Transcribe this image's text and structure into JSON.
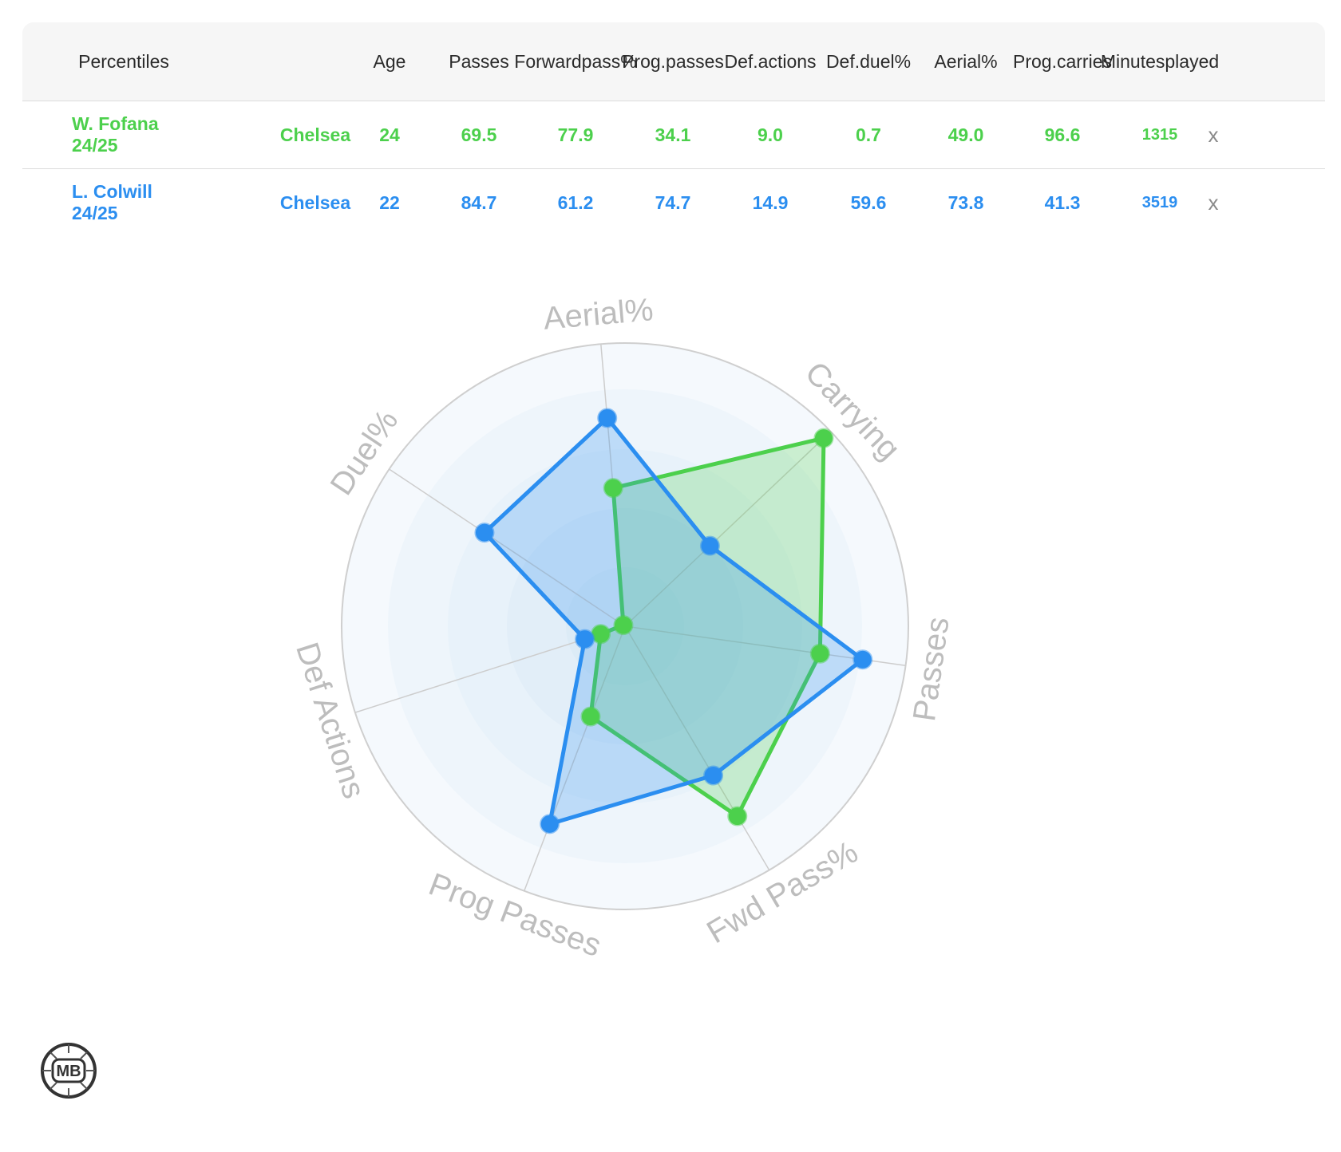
{
  "table": {
    "headers": [
      {
        "key": "percentiles",
        "lines": [
          "Percentiles"
        ]
      },
      {
        "key": "age",
        "lines": [
          "Age"
        ]
      },
      {
        "key": "passes",
        "lines": [
          "Passes"
        ]
      },
      {
        "key": "forward_pass",
        "lines": [
          "Forward",
          "pass%"
        ]
      },
      {
        "key": "prog_passes",
        "lines": [
          "Prog.",
          "passes"
        ]
      },
      {
        "key": "def_actions",
        "lines": [
          "Def.",
          "actions"
        ]
      },
      {
        "key": "def_duel",
        "lines": [
          "Def.",
          "duel%"
        ]
      },
      {
        "key": "aerial",
        "lines": [
          "Aerial%"
        ]
      },
      {
        "key": "prog_carries",
        "lines": [
          "Prog.",
          "carries"
        ]
      },
      {
        "key": "minutes",
        "lines": [
          "Minutes",
          "played"
        ]
      }
    ],
    "rows": [
      {
        "player": "W. Fofana 24/25",
        "team": "Chelsea",
        "age": "24",
        "passes": "69.5",
        "forward_pass": "77.9",
        "prog_passes": "34.1",
        "def_actions": "9.0",
        "def_duel": "0.7",
        "aerial": "49.0",
        "prog_carries": "96.6",
        "minutes": "1315",
        "remove": "x",
        "color": "#4cd04c"
      },
      {
        "player": "L. Colwill 24/25",
        "team": "Chelsea",
        "age": "22",
        "passes": "84.7",
        "forward_pass": "61.2",
        "prog_passes": "74.7",
        "def_actions": "14.9",
        "def_duel": "59.6",
        "aerial": "73.8",
        "prog_carries": "41.3",
        "minutes": "3519",
        "remove": "x",
        "color": "#2b8ef0"
      }
    ]
  },
  "chart_data": {
    "type": "radar",
    "axes": [
      "Aerial%",
      "Carrying",
      "Passes",
      "Fwd Pass%",
      "Prog Passes",
      "Def Actions",
      "Duel%"
    ],
    "range": [
      0,
      100
    ],
    "series": [
      {
        "name": "W. Fofana 24/25",
        "color": "#4cd04c",
        "values": [
          49.0,
          96.6,
          69.5,
          77.9,
          34.1,
          9.0,
          0.7
        ]
      },
      {
        "name": "L. Colwill 24/25",
        "color": "#2b8ef0",
        "values": [
          73.8,
          41.3,
          84.7,
          61.2,
          74.7,
          14.9,
          59.6
        ]
      }
    ]
  },
  "logo": {
    "text": "MB"
  }
}
